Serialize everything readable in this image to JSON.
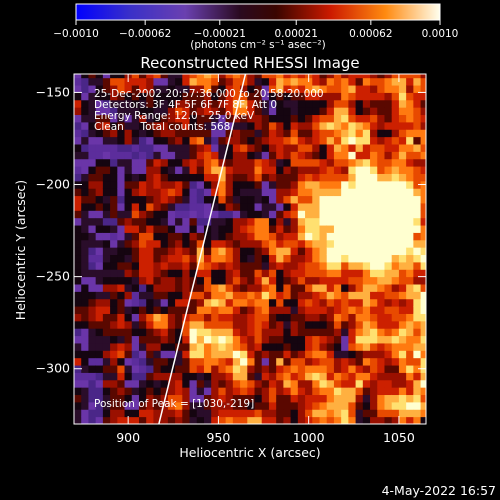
{
  "chart_data": {
    "type": "heatmap",
    "title": "Reconstructed RHESSI Image",
    "xlabel": "Heliocentric X (arcsec)",
    "ylabel": "Heliocentric Y (arcsec)",
    "xlim": [
      870,
      1065
    ],
    "ylim": [
      -330,
      -140
    ],
    "x_ticks": [
      900,
      950,
      1000,
      1050
    ],
    "x_tick_labels": [
      "900",
      "950",
      "1000",
      "1050"
    ],
    "y_ticks": [
      -150,
      -200,
      -250,
      -300
    ],
    "y_tick_labels": [
      "-150",
      "-200",
      "-250",
      "-300"
    ],
    "colorbar": {
      "range": [
        -0.001,
        0.001
      ],
      "tick_labels": [
        "−0.0010",
        "−0.00062",
        "−0.00021",
        "0.00021",
        "0.00062",
        "0.0010"
      ],
      "tick_values": [
        -0.001,
        -0.00062,
        -0.00021,
        0.00021,
        0.00062,
        0.001
      ],
      "units_label": "(photons cm⁻² s⁻¹ asec⁻²)"
    },
    "annotation_lines": [
      "25-Dec-2002 20:57:36.000 to 20:58:20.000",
      "Detectors: 3F 4F 5F 6F 7F 8F, Att 0",
      "Energy Range: 12.0 - 25.0 keV",
      "Clean     Total counts: 568."
    ],
    "peak_label": "Position of Peak = [1030,-219]",
    "peak": [
      1030,
      -219
    ],
    "limb_line": [
      [
        917,
        -330
      ],
      [
        965,
        -140
      ]
    ],
    "colors": {
      "background": "#000000",
      "low": "#5a2a9a",
      "mid_dark": "#1a0a1a",
      "red": "#cc1a00",
      "orange": "#ff7a10",
      "high": "#ffffcc"
    }
  },
  "footer": {
    "timestamp": "4-May-2022 16:57"
  }
}
